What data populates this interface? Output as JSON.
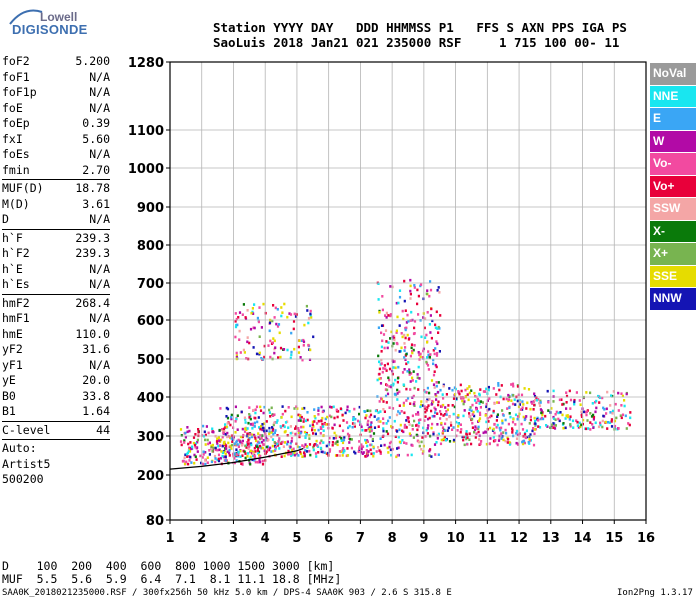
{
  "logo": {
    "top": "Lowell",
    "main": "DIGISONDE"
  },
  "header": {
    "line1": "Station YYYY DAY   DDD HHMMSS P1   FFS S AXN PPS IGA PS",
    "line2": "SaoLuis 2018 Jan21 021 235000 RSF     1 715 100 00- 11"
  },
  "params": [
    {
      "label": "foF2",
      "value": "5.200"
    },
    {
      "label": "foF1",
      "value": "N/A"
    },
    {
      "label": "foF1p",
      "value": "N/A"
    },
    {
      "label": "foE",
      "value": "N/A"
    },
    {
      "label": "foEp",
      "value": "0.39"
    },
    {
      "label": "fxI",
      "value": "5.60"
    },
    {
      "label": "foEs",
      "value": "N/A"
    },
    {
      "label": "fmin",
      "value": "2.70"
    },
    {
      "sep": true
    },
    {
      "label": "MUF(D)",
      "value": "18.78"
    },
    {
      "label": "M(D)",
      "value": "3.61"
    },
    {
      "label": "D",
      "value": "N/A"
    },
    {
      "sep": true
    },
    {
      "label": "h`F",
      "value": "239.3"
    },
    {
      "label": "h`F2",
      "value": "239.3"
    },
    {
      "label": "h`E",
      "value": "N/A"
    },
    {
      "label": "h`Es",
      "value": "N/A"
    },
    {
      "sep": true
    },
    {
      "label": "hmF2",
      "value": "268.4"
    },
    {
      "label": "hmF1",
      "value": "N/A"
    },
    {
      "label": "hmE",
      "value": "110.0"
    },
    {
      "label": "yF2",
      "value": "31.6"
    },
    {
      "label": "yF1",
      "value": "N/A"
    },
    {
      "label": "yE",
      "value": "20.0"
    },
    {
      "label": "B0",
      "value": "33.8"
    },
    {
      "label": "B1",
      "value": "1.64"
    },
    {
      "sep": true
    },
    {
      "label": "C-level",
      "value": "44"
    },
    {
      "sep": true
    },
    {
      "text": "Auto:"
    },
    {
      "text": "Artist5"
    },
    {
      "text": "500200"
    }
  ],
  "legend": [
    {
      "label": "NoVal",
      "color": "#9a9a9a"
    },
    {
      "label": "NNE",
      "color": "#19e6f0"
    },
    {
      "label": "E",
      "color": "#3aa6f5"
    },
    {
      "label": "W",
      "color": "#b20aa6"
    },
    {
      "label": "Vo-",
      "color": "#f24aa0"
    },
    {
      "label": "Vo+",
      "color": "#e8003a"
    },
    {
      "label": "SSW",
      "color": "#f4a6a6"
    },
    {
      "label": "X-",
      "color": "#0a7a0a"
    },
    {
      "label": "X+",
      "color": "#78b450"
    },
    {
      "label": "SSE",
      "color": "#e6dc00"
    },
    {
      "label": "NNW",
      "color": "#1414b4"
    }
  ],
  "chart_data": {
    "type": "scatter",
    "x_ticks": [
      1,
      2,
      3,
      4,
      5,
      6,
      7,
      8,
      9,
      10,
      11,
      12,
      13,
      14,
      15,
      16
    ],
    "y_ticks": [
      80,
      200,
      300,
      400,
      500,
      600,
      700,
      800,
      900,
      1000,
      1100,
      1280
    ],
    "xlim": [
      1,
      16
    ],
    "ylim": [
      80,
      1280
    ],
    "grid": true,
    "trace_profile": {
      "x": [
        1.0,
        2.0,
        3.0,
        4.0,
        5.0,
        5.2
      ],
      "y": [
        215,
        222,
        232,
        246,
        262,
        268
      ]
    },
    "echo_bands": [
      {
        "x": [
          1.3,
          4.0
        ],
        "y": [
          230,
          330
        ],
        "density": 0.7
      },
      {
        "x": [
          2.5,
          7.5
        ],
        "y": [
          250,
          380
        ],
        "density": 0.6
      },
      {
        "x": [
          3.0,
          5.5
        ],
        "y": [
          500,
          650
        ],
        "density": 0.25
      },
      {
        "x": [
          7.5,
          9.5
        ],
        "y": [
          250,
          720
        ],
        "density": 0.35
      },
      {
        "x": [
          9.5,
          12.5
        ],
        "y": [
          280,
          440
        ],
        "density": 0.55
      },
      {
        "x": [
          12.5,
          15.5
        ],
        "y": [
          320,
          420
        ],
        "density": 0.45
      }
    ]
  },
  "footer": {
    "d_row": "D    100  200  400  600  800 1000 1500 3000 [km]",
    "muf_row": "MUF  5.5  5.6  5.9  6.4  7.1  8.1 11.1 18.8 [MHz]",
    "info": "SAA0K_2018021235000.RSF / 300fx256h 50 kHz 5.0 km / DPS-4 SAA0K 903 / 2.6 S 315.8 E",
    "version": "Ion2Png 1.3.17"
  }
}
